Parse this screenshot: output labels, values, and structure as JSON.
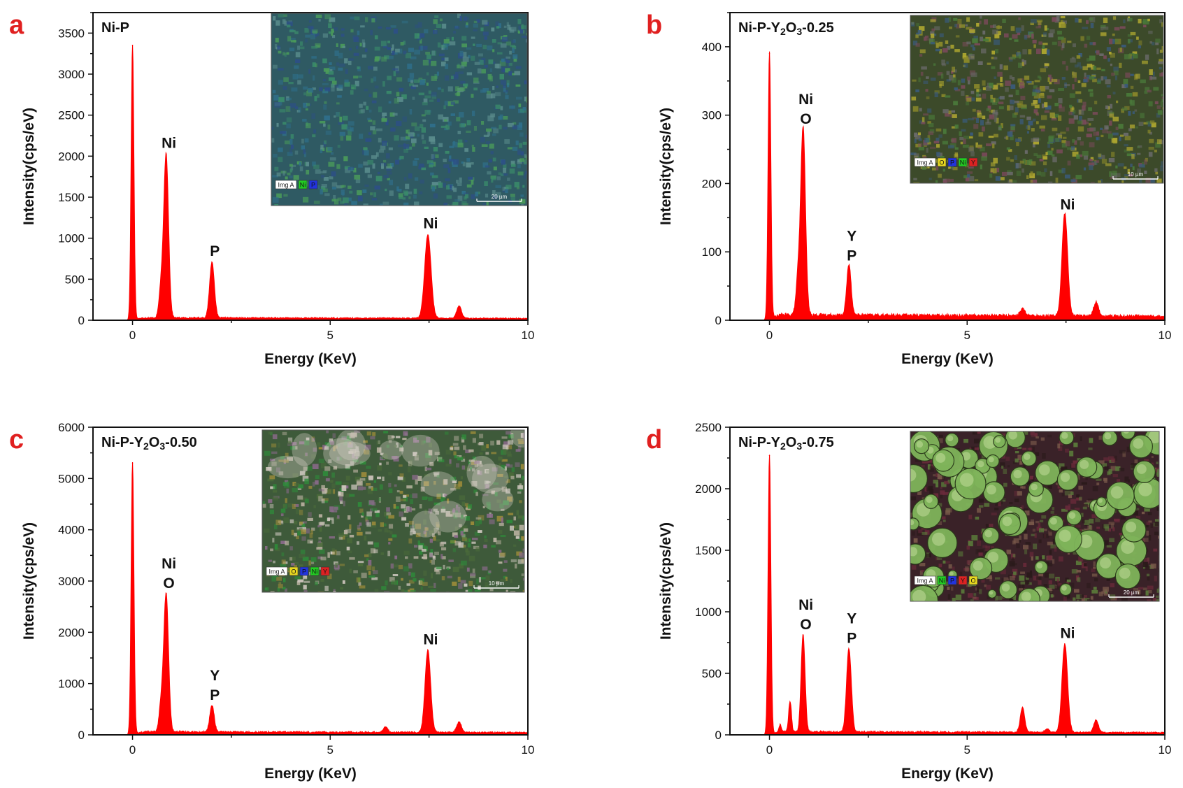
{
  "figure": {
    "panel_letter_color": "#e02020",
    "spectrum_color": "#ff0000",
    "axis_color": "#111111"
  },
  "chart_data": [
    {
      "type": "area",
      "panel": "a",
      "title": "Ni-P",
      "title_parts": [
        {
          "t": "Ni-P",
          "sub": false
        }
      ],
      "xlabel": "Energy (KeV)",
      "ylabel": "Intensity(cps/eV)",
      "xlim": [
        -1,
        10
      ],
      "ylim": [
        0,
        3750
      ],
      "xticks": [
        0,
        5,
        10
      ],
      "yticks": [
        0,
        500,
        1000,
        1500,
        2000,
        2500,
        3000,
        3500
      ],
      "baseline": 30,
      "peaks": [
        {
          "x": 0.0,
          "y": 3350,
          "w": 0.035
        },
        {
          "x": 0.72,
          "y": 350,
          "w": 0.05
        },
        {
          "x": 0.85,
          "y": 2000,
          "w": 0.06
        },
        {
          "x": 2.01,
          "y": 680,
          "w": 0.06
        },
        {
          "x": 7.47,
          "y": 1020,
          "w": 0.08
        },
        {
          "x": 8.26,
          "y": 150,
          "w": 0.06
        }
      ],
      "peak_labels": [
        {
          "x": 0.85,
          "y": 2000,
          "lines": [
            "Ni"
          ]
        },
        {
          "x": 2.01,
          "y": 680,
          "lines": [
            "P"
          ]
        },
        {
          "x": 7.47,
          "y": 1020,
          "lines": [
            "Ni"
          ]
        }
      ],
      "inset": {
        "legend": [
          "Img A",
          "Ni",
          "P"
        ],
        "legend_colors": [
          "#ffffff",
          "#22cc22",
          "#2233dd"
        ],
        "scale": "20 µm",
        "base_color": "#2f5a63",
        "speckle_colors": [
          "#3a8a6a",
          "#2d4f86",
          "#4a9b5a",
          "#2f6f8a",
          "#5a8c8c"
        ]
      }
    },
    {
      "type": "area",
      "panel": "b",
      "title": "Ni-P-Y2O3-0.25",
      "title_parts": [
        {
          "t": "Ni-P-Y",
          "sub": false
        },
        {
          "t": "2",
          "sub": true
        },
        {
          "t": "O",
          "sub": false
        },
        {
          "t": "3",
          "sub": true
        },
        {
          "t": "-0.25",
          "sub": false
        }
      ],
      "xlabel": "Energy (KeV)",
      "ylabel": "Intensity(cps/eV)",
      "xlim": [
        -1,
        10
      ],
      "ylim": [
        0,
        450
      ],
      "xticks": [
        0,
        5,
        10
      ],
      "yticks": [
        0,
        100,
        200,
        300,
        400
      ],
      "baseline": 8,
      "peaks": [
        {
          "x": 0.0,
          "y": 390,
          "w": 0.035
        },
        {
          "x": 0.72,
          "y": 50,
          "w": 0.05
        },
        {
          "x": 0.85,
          "y": 275,
          "w": 0.06
        },
        {
          "x": 2.01,
          "y": 75,
          "w": 0.055
        },
        {
          "x": 6.4,
          "y": 10,
          "w": 0.06
        },
        {
          "x": 7.47,
          "y": 150,
          "w": 0.07
        },
        {
          "x": 8.26,
          "y": 20,
          "w": 0.06
        }
      ],
      "peak_labels": [
        {
          "x": 0.85,
          "y": 275,
          "lines": [
            "Ni",
            "O"
          ]
        },
        {
          "x": 2.01,
          "y": 75,
          "lines": [
            "Y",
            "P"
          ]
        },
        {
          "x": 7.47,
          "y": 150,
          "lines": [
            "Ni"
          ]
        }
      ],
      "inset": {
        "legend": [
          "Img A",
          "O",
          "P",
          "Ni",
          "Y"
        ],
        "legend_colors": [
          "#ffffff",
          "#e8d820",
          "#2233dd",
          "#22cc22",
          "#dd2222"
        ],
        "scale": "10 µm",
        "base_color": "#3c4a2a",
        "speckle_colors": [
          "#8c8a2a",
          "#4a7a3a",
          "#7a4a5a",
          "#b0a830",
          "#3a5a7a",
          "#6a6a6a"
        ]
      }
    },
    {
      "type": "area",
      "panel": "c",
      "title": "Ni-P-Y2O3-0.50",
      "title_parts": [
        {
          "t": "Ni-P-Y",
          "sub": false
        },
        {
          "t": "2",
          "sub": true
        },
        {
          "t": "O",
          "sub": false
        },
        {
          "t": "3",
          "sub": true
        },
        {
          "t": "-0.50",
          "sub": false
        }
      ],
      "xlabel": "Energy (KeV)",
      "ylabel": "Intensity(cps/eV)",
      "xlim": [
        -1,
        10
      ],
      "ylim": [
        0,
        6000
      ],
      "xticks": [
        0,
        5,
        10
      ],
      "yticks": [
        0,
        1000,
        2000,
        3000,
        4000,
        5000,
        6000
      ],
      "baseline": 60,
      "peaks": [
        {
          "x": 0.0,
          "y": 5300,
          "w": 0.035
        },
        {
          "x": 0.72,
          "y": 500,
          "w": 0.05
        },
        {
          "x": 0.85,
          "y": 2700,
          "w": 0.06
        },
        {
          "x": 2.01,
          "y": 520,
          "w": 0.055
        },
        {
          "x": 6.4,
          "y": 100,
          "w": 0.06
        },
        {
          "x": 7.47,
          "y": 1600,
          "w": 0.07
        },
        {
          "x": 8.26,
          "y": 200,
          "w": 0.06
        }
      ],
      "peak_labels": [
        {
          "x": 0.85,
          "y": 2700,
          "lines": [
            "Ni",
            "O"
          ]
        },
        {
          "x": 2.01,
          "y": 520,
          "lines": [
            "Y",
            "P"
          ]
        },
        {
          "x": 7.47,
          "y": 1600,
          "lines": [
            "Ni"
          ]
        }
      ],
      "inset": {
        "legend": [
          "Img A",
          "O",
          "P",
          "Ni",
          "Y"
        ],
        "legend_colors": [
          "#ffffff",
          "#e8d820",
          "#2233dd",
          "#22cc22",
          "#dd2222"
        ],
        "scale": "10 µm",
        "base_color": "#3e5a3a",
        "speckle_colors": [
          "#2f8a3a",
          "#8a6a8a",
          "#b8b0a0",
          "#4a6a3a",
          "#9a8a3a",
          "#d0c8c0"
        ]
      }
    },
    {
      "type": "area",
      "panel": "d",
      "title": "Ni-P-Y2O3-0.75",
      "title_parts": [
        {
          "t": "Ni-P-Y",
          "sub": false
        },
        {
          "t": "2",
          "sub": true
        },
        {
          "t": "O",
          "sub": false
        },
        {
          "t": "3",
          "sub": true
        },
        {
          "t": "-0.75",
          "sub": false
        }
      ],
      "xlabel": "Energy (KeV)",
      "ylabel": "Intensity(cps/eV)",
      "xlim": [
        -1,
        10
      ],
      "ylim": [
        0,
        2500
      ],
      "xticks": [
        0,
        5,
        10
      ],
      "yticks": [
        0,
        500,
        1000,
        1500,
        2000,
        2500
      ],
      "baseline": 25,
      "peaks": [
        {
          "x": 0.0,
          "y": 2270,
          "w": 0.035
        },
        {
          "x": 0.27,
          "y": 60,
          "w": 0.03
        },
        {
          "x": 0.52,
          "y": 250,
          "w": 0.035
        },
        {
          "x": 0.85,
          "y": 790,
          "w": 0.05
        },
        {
          "x": 2.01,
          "y": 680,
          "w": 0.06
        },
        {
          "x": 6.4,
          "y": 200,
          "w": 0.055
        },
        {
          "x": 7.02,
          "y": 30,
          "w": 0.05
        },
        {
          "x": 7.47,
          "y": 720,
          "w": 0.07
        },
        {
          "x": 8.26,
          "y": 100,
          "w": 0.06
        }
      ],
      "peak_labels": [
        {
          "x": 0.85,
          "y": 790,
          "lines": [
            "Ni",
            "O"
          ]
        },
        {
          "x": 2.01,
          "y": 680,
          "lines": [
            "Y",
            "P"
          ]
        },
        {
          "x": 7.47,
          "y": 720,
          "lines": [
            "Ni"
          ]
        }
      ],
      "inset": {
        "legend": [
          "Img A",
          "Ni",
          "P",
          "Y",
          "O"
        ],
        "legend_colors": [
          "#ffffff",
          "#22cc22",
          "#2233dd",
          "#dd2222",
          "#e8d820"
        ],
        "scale": "20 µm",
        "base_color": "#3a2228",
        "speckle_colors": [
          "#5a7a3a",
          "#6a2a3a",
          "#2a1a1a",
          "#7a5a4a"
        ],
        "particle_color": "#7fb45a"
      }
    }
  ]
}
